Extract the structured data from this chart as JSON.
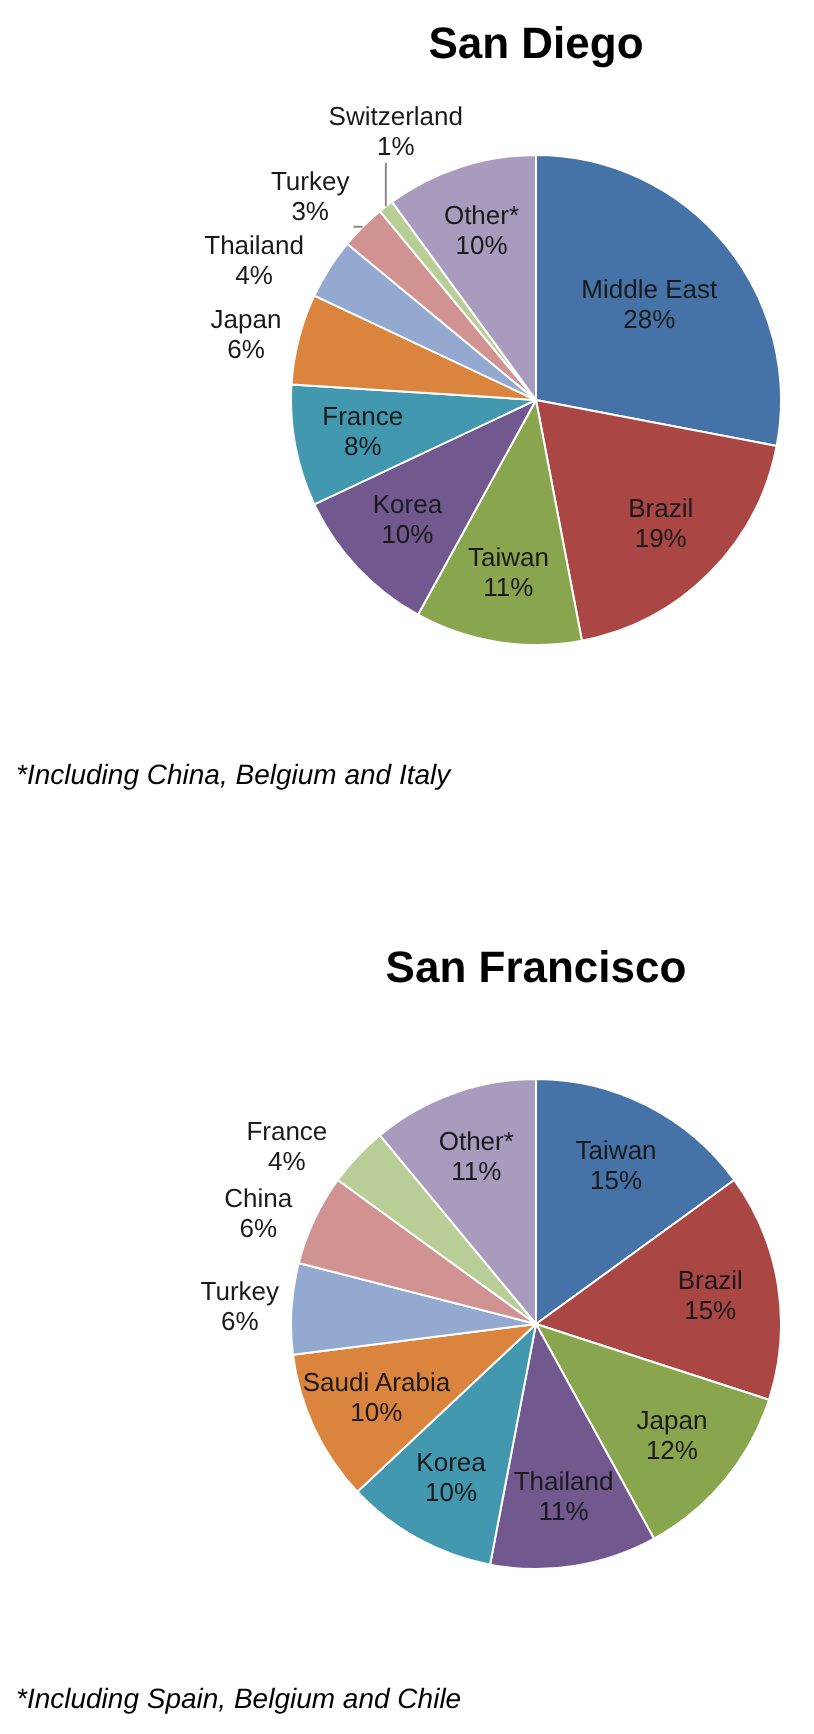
{
  "chart_data": [
    {
      "type": "pie",
      "title": "San Diego",
      "categories": [
        "Middle East",
        "Brazil",
        "Taiwan",
        "Korea",
        "France",
        "Japan",
        "Thailand",
        "Turkey",
        "Switzerland",
        "Other*"
      ],
      "values": [
        28,
        19,
        11,
        10,
        8,
        6,
        4,
        3,
        1,
        10
      ],
      "value_labels": [
        "28%",
        "19%",
        "11%",
        "10%",
        "8%",
        "6%",
        "4%",
        "3%",
        "1%",
        "10%"
      ],
      "colors": [
        "#4572a7",
        "#aa4643",
        "#89a54e",
        "#71588f",
        "#4198af",
        "#db843d",
        "#93a9cf",
        "#d19392",
        "#b9cd96",
        "#a99bbd"
      ],
      "annotations": [
        "*Including China, Belgium and Italy"
      ]
    },
    {
      "type": "pie",
      "title": "San Francisco",
      "categories": [
        "Taiwan",
        "Brazil",
        "Japan",
        "Thailand",
        "Korea",
        "Saudi Arabia",
        "Turkey",
        "China",
        "France",
        "Other*"
      ],
      "values": [
        15,
        15,
        12,
        11,
        10,
        10,
        6,
        6,
        4,
        11
      ],
      "value_labels": [
        "15%",
        "15%",
        "12%",
        "11%",
        "10%",
        "10%",
        "6%",
        "6%",
        "4%",
        "11%"
      ],
      "colors": [
        "#4572a7",
        "#aa4643",
        "#89a54e",
        "#71588f",
        "#4198af",
        "#db843d",
        "#93a9cf",
        "#d19392",
        "#b9cd96",
        "#a99bbd"
      ],
      "annotations": [
        "*Including Spain, Belgium and Chile"
      ]
    }
  ]
}
